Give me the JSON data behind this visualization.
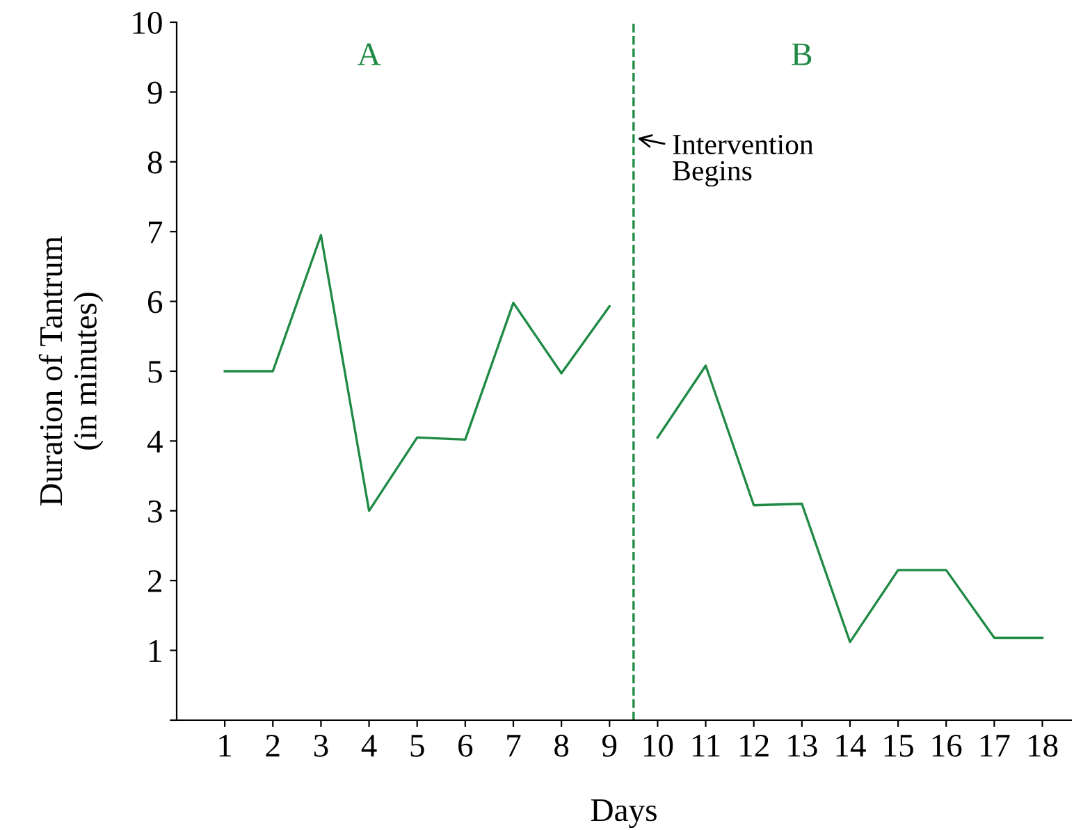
{
  "chart_data": {
    "type": "line",
    "xlabel": "Days",
    "ylabel": "Duration of Tantrum\n(in minutes)",
    "series": [
      {
        "color": "#1e8a44",
        "x": [
          1,
          2,
          3,
          4,
          5,
          6,
          7,
          8,
          9
        ],
        "values": [
          5,
          5,
          6.95,
          3,
          4.05,
          4.02,
          5.98,
          4.97,
          5.93
        ]
      },
      {
        "color": "#1e8a44",
        "x": [
          10,
          11,
          12,
          13,
          14,
          15,
          16,
          17,
          18
        ],
        "values": [
          4.05,
          5.08,
          3.08,
          3.1,
          1.12,
          2.15,
          2.15,
          1.18,
          1.18
        ]
      }
    ],
    "xlim": [
      0,
      18.6
    ],
    "ylim": [
      0,
      10
    ],
    "xticks": [
      1,
      2,
      3,
      4,
      5,
      6,
      7,
      8,
      9,
      10,
      11,
      12,
      13,
      14,
      15,
      16,
      17,
      18
    ],
    "yticks": [
      {
        "value": 0,
        "label": null
      },
      1,
      2,
      3,
      4,
      5,
      6,
      7,
      8,
      9,
      10
    ],
    "ref_lines": [
      {
        "axis": "x",
        "value": 9.5,
        "label": null,
        "color": "#1e8a44",
        "line_style": "dashed"
      }
    ],
    "annotations": [
      "A",
      "B",
      {
        "text": "Intervention\nBegins",
        "x": 9.5,
        "y": 8.35
      }
    ],
    "grid": false,
    "legend": false,
    "marker": "none",
    "line_style": "solid"
  }
}
